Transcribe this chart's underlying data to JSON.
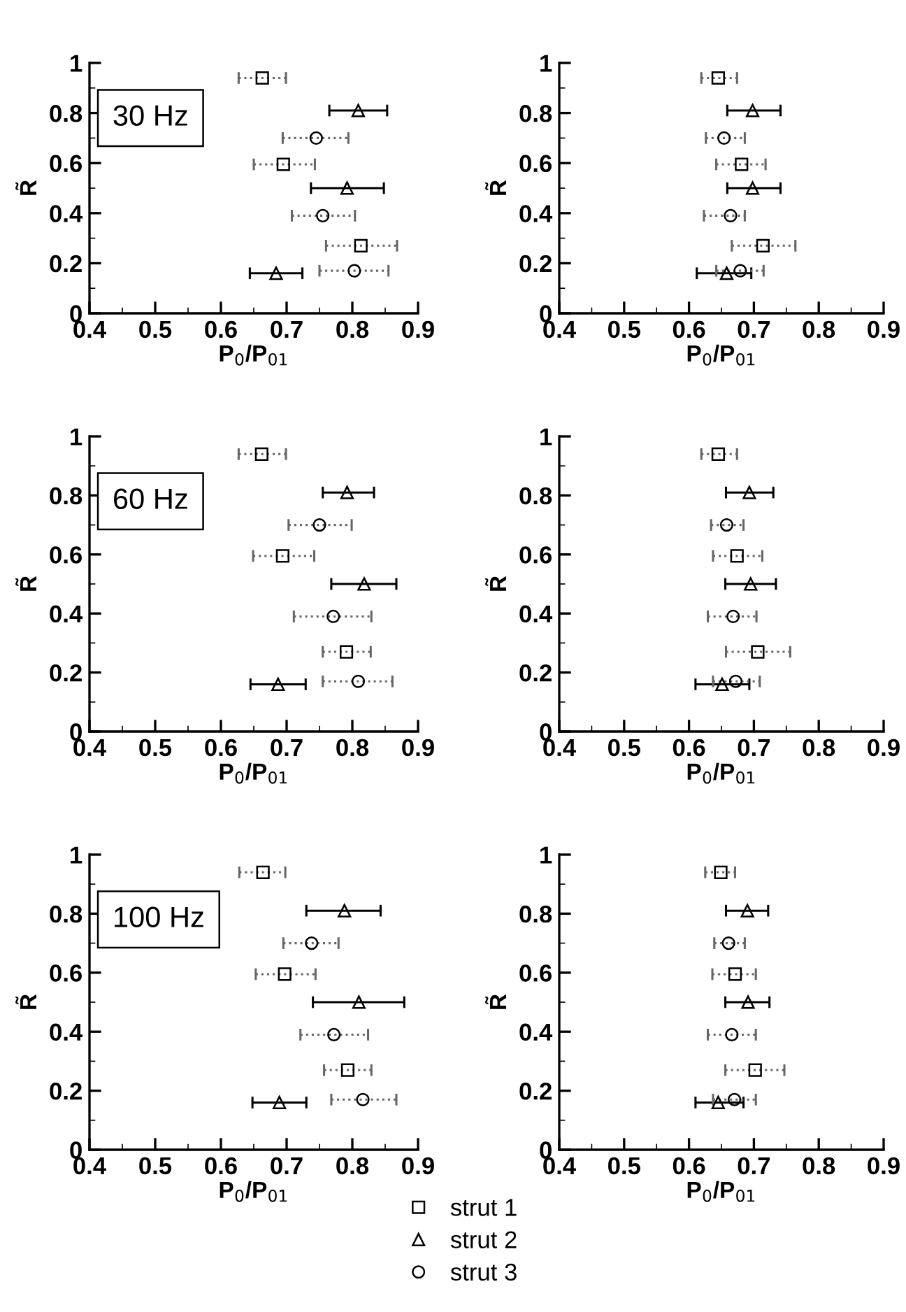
{
  "chart_data": [
    {
      "type": "scatter",
      "annotations": [
        "30 Hz"
      ],
      "xlabel": "P$_{0}$/P$_{01}$",
      "ylabel": "R̃",
      "xlim": [
        0.4,
        0.9
      ],
      "ylim": [
        0,
        1
      ],
      "xticks": [
        0.4,
        0.5,
        0.6,
        0.7,
        0.8,
        0.9
      ],
      "yticks": [
        0,
        0.2,
        0.4,
        0.6,
        0.8,
        1
      ],
      "grid": false,
      "series": [
        {
          "color": "#000000",
          "marker": "square",
          "line_style": "dotted",
          "x": [
            0.663,
            0.695,
            0.813
          ],
          "values": [
            0.94,
            0.595,
            0.27
          ],
          "xerrors": [
            [
              0.627,
              0.699
            ],
            [
              0.65,
              0.743
            ],
            [
              0.76,
              0.868
            ]
          ]
        },
        {
          "color": "#000000",
          "marker": "triangle",
          "line_style": "solid",
          "x": [
            0.809,
            0.792,
            0.684
          ],
          "values": [
            0.81,
            0.5,
            0.16
          ],
          "xerrors": [
            [
              0.765,
              0.853
            ],
            [
              0.737,
              0.848
            ],
            [
              0.644,
              0.724
            ]
          ]
        },
        {
          "color": "#000000",
          "marker": "circle",
          "line_style": "dotted",
          "x": [
            0.745,
            0.755,
            0.803
          ],
          "values": [
            0.7,
            0.39,
            0.17
          ],
          "xerrors": [
            [
              0.694,
              0.794
            ],
            [
              0.708,
              0.804
            ],
            [
              0.75,
              0.855
            ]
          ]
        }
      ]
    },
    {
      "type": "scatter",
      "xlabel": "P$_{0}$/P$_{01}$",
      "ylabel": "R̃",
      "xlim": [
        0.4,
        0.9
      ],
      "ylim": [
        0,
        1
      ],
      "xticks": [
        0.4,
        0.5,
        0.6,
        0.7,
        0.8,
        0.9
      ],
      "yticks": [
        0,
        0.2,
        0.4,
        0.6,
        0.8,
        1
      ],
      "grid": false,
      "series": [
        {
          "color": "#000000",
          "marker": "square",
          "line_style": "dotted",
          "x": [
            0.645,
            0.681,
            0.714
          ],
          "values": [
            0.94,
            0.595,
            0.27
          ],
          "xerrors": [
            [
              0.619,
              0.674
            ],
            [
              0.642,
              0.718
            ],
            [
              0.666,
              0.764
            ]
          ]
        },
        {
          "color": "#000000",
          "marker": "triangle",
          "line_style": "solid",
          "x": [
            0.698,
            0.698,
            0.658
          ],
          "values": [
            0.81,
            0.5,
            0.16
          ],
          "xerrors": [
            [
              0.659,
              0.741
            ],
            [
              0.659,
              0.741
            ],
            [
              0.612,
              0.696
            ]
          ]
        },
        {
          "color": "#000000",
          "marker": "circle",
          "line_style": "dotted",
          "x": [
            0.654,
            0.664,
            0.679
          ],
          "values": [
            0.7,
            0.39,
            0.17
          ],
          "xerrors": [
            [
              0.626,
              0.686
            ],
            [
              0.623,
              0.686
            ],
            [
              0.642,
              0.715
            ]
          ]
        }
      ]
    },
    {
      "type": "scatter",
      "annotations": [
        "60 Hz"
      ],
      "xlabel": "P$_{0}$/P$_{01}$",
      "ylabel": "R̃",
      "xlim": [
        0.4,
        0.9
      ],
      "ylim": [
        0,
        1
      ],
      "xticks": [
        0.4,
        0.5,
        0.6,
        0.7,
        0.8,
        0.9
      ],
      "yticks": [
        0,
        0.2,
        0.4,
        0.6,
        0.8,
        1
      ],
      "grid": false,
      "series": [
        {
          "color": "#000000",
          "marker": "square",
          "line_style": "dotted",
          "x": [
            0.662,
            0.694,
            0.791
          ],
          "values": [
            0.94,
            0.595,
            0.27
          ],
          "xerrors": [
            [
              0.627,
              0.699
            ],
            [
              0.649,
              0.742
            ],
            [
              0.755,
              0.828
            ]
          ]
        },
        {
          "color": "#000000",
          "marker": "triangle",
          "line_style": "solid",
          "x": [
            0.792,
            0.818,
            0.687
          ],
          "values": [
            0.81,
            0.5,
            0.16
          ],
          "xerrors": [
            [
              0.755,
              0.833
            ],
            [
              0.768,
              0.867
            ],
            [
              0.645,
              0.729
            ]
          ]
        },
        {
          "color": "#000000",
          "marker": "circle",
          "line_style": "dotted",
          "x": [
            0.75,
            0.771,
            0.809
          ],
          "values": [
            0.7,
            0.39,
            0.17
          ],
          "xerrors": [
            [
              0.703,
              0.799
            ],
            [
              0.711,
              0.829
            ],
            [
              0.755,
              0.861
            ]
          ]
        }
      ]
    },
    {
      "type": "scatter",
      "xlabel": "P$_{0}$/P$_{01}$",
      "ylabel": "R̃",
      "xlim": [
        0.4,
        0.9
      ],
      "ylim": [
        0,
        1
      ],
      "xticks": [
        0.4,
        0.5,
        0.6,
        0.7,
        0.8,
        0.9
      ],
      "yticks": [
        0,
        0.2,
        0.4,
        0.6,
        0.8,
        1
      ],
      "grid": false,
      "series": [
        {
          "color": "#000000",
          "marker": "square",
          "line_style": "dotted",
          "x": [
            0.645,
            0.674,
            0.706
          ],
          "values": [
            0.94,
            0.595,
            0.27
          ],
          "xerrors": [
            [
              0.619,
              0.674
            ],
            [
              0.637,
              0.713
            ],
            [
              0.657,
              0.756
            ]
          ]
        },
        {
          "color": "#000000",
          "marker": "triangle",
          "line_style": "solid",
          "x": [
            0.693,
            0.695,
            0.651
          ],
          "values": [
            0.81,
            0.5,
            0.16
          ],
          "xerrors": [
            [
              0.657,
              0.73
            ],
            [
              0.656,
              0.734
            ],
            [
              0.61,
              0.693
            ]
          ]
        },
        {
          "color": "#000000",
          "marker": "circle",
          "line_style": "dotted",
          "x": [
            0.658,
            0.668,
            0.672
          ],
          "values": [
            0.7,
            0.39,
            0.17
          ],
          "xerrors": [
            [
              0.634,
              0.684
            ],
            [
              0.629,
              0.704
            ],
            [
              0.637,
              0.709
            ]
          ]
        }
      ]
    },
    {
      "type": "scatter",
      "annotations": [
        "100 Hz"
      ],
      "xlabel": "P$_{0}$/P$_{01}$",
      "ylabel": "R̃",
      "xlim": [
        0.4,
        0.9
      ],
      "ylim": [
        0,
        1
      ],
      "xticks": [
        0.4,
        0.5,
        0.6,
        0.7,
        0.8,
        0.9
      ],
      "yticks": [
        0,
        0.2,
        0.4,
        0.6,
        0.8,
        1
      ],
      "grid": false,
      "series": [
        {
          "color": "#000000",
          "marker": "square",
          "line_style": "dotted",
          "x": [
            0.664,
            0.697,
            0.793
          ],
          "values": [
            0.94,
            0.595,
            0.27
          ],
          "xerrors": [
            [
              0.628,
              0.698
            ],
            [
              0.653,
              0.744
            ],
            [
              0.757,
              0.829
            ]
          ]
        },
        {
          "color": "#000000",
          "marker": "triangle",
          "line_style": "solid",
          "x": [
            0.788,
            0.81,
            0.689
          ],
          "values": [
            0.81,
            0.5,
            0.16
          ],
          "xerrors": [
            [
              0.73,
              0.843
            ],
            [
              0.74,
              0.879
            ],
            [
              0.648,
              0.73
            ]
          ]
        },
        {
          "color": "#000000",
          "marker": "circle",
          "line_style": "dotted",
          "x": [
            0.738,
            0.772,
            0.816
          ],
          "values": [
            0.7,
            0.39,
            0.17
          ],
          "xerrors": [
            [
              0.695,
              0.779
            ],
            [
              0.721,
              0.824
            ],
            [
              0.768,
              0.867
            ]
          ]
        }
      ]
    },
    {
      "type": "scatter",
      "xlabel": "P$_{0}$/P$_{01}$",
      "ylabel": "R̃",
      "xlim": [
        0.4,
        0.9
      ],
      "ylim": [
        0,
        1
      ],
      "xticks": [
        0.4,
        0.5,
        0.6,
        0.7,
        0.8,
        0.9
      ],
      "yticks": [
        0,
        0.2,
        0.4,
        0.6,
        0.8,
        1
      ],
      "grid": false,
      "legend": "bottom",
      "series": [
        {
          "name": "strut 1",
          "color": "#000000",
          "marker": "square",
          "line_style": "dotted",
          "x": [
            0.649,
            0.671,
            0.702
          ],
          "values": [
            0.94,
            0.595,
            0.27
          ],
          "xerrors": [
            [
              0.625,
              0.671
            ],
            [
              0.636,
              0.703
            ],
            [
              0.656,
              0.747
            ]
          ]
        },
        {
          "name": "strut 2",
          "color": "#000000",
          "marker": "triangle",
          "line_style": "solid",
          "x": [
            0.69,
            0.691,
            0.645
          ],
          "values": [
            0.81,
            0.5,
            0.16
          ],
          "xerrors": [
            [
              0.657,
              0.722
            ],
            [
              0.656,
              0.724
            ],
            [
              0.61,
              0.684
            ]
          ]
        },
        {
          "name": "strut 3",
          "color": "#000000",
          "marker": "circle",
          "line_style": "dotted",
          "x": [
            0.661,
            0.666,
            0.67
          ],
          "values": [
            0.7,
            0.39,
            0.17
          ],
          "xerrors": [
            [
              0.639,
              0.686
            ],
            [
              0.629,
              0.703
            ],
            [
              0.637,
              0.703
            ]
          ]
        }
      ]
    }
  ]
}
